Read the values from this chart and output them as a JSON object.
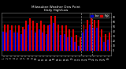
{
  "title": "Milwaukee Weather Dew Point",
  "subtitle": "Daily High/Low",
  "legend_high": "High",
  "legend_low": "Low",
  "color_high": "#dd0000",
  "color_low": "#0000cc",
  "background_color": "#000000",
  "plot_bg_color": "#000000",
  "grid_color": "#444444",
  "ylim": [
    -10,
    80
  ],
  "yticks": [
    0,
    10,
    20,
    30,
    40,
    50,
    60,
    70
  ],
  "ytick_labels": [
    "0",
    "10",
    "20",
    "30",
    "40",
    "50",
    "60",
    "70"
  ],
  "bar_width": 0.42,
  "categories": [
    "1",
    "2",
    "3",
    "4",
    "5",
    "6",
    "7",
    "8",
    "9",
    "10",
    "11",
    "12",
    "13",
    "14",
    "15",
    "16",
    "17",
    "18",
    "19",
    "20",
    "21",
    "22",
    "23",
    "24",
    "25",
    "26",
    "27",
    "28",
    "29",
    "30"
  ],
  "high_values": [
    55,
    55,
    52,
    52,
    52,
    50,
    62,
    68,
    62,
    58,
    62,
    55,
    52,
    72,
    72,
    55,
    52,
    52,
    45,
    45,
    32,
    28,
    55,
    65,
    72,
    65,
    65,
    45,
    35,
    38
  ],
  "low_values": [
    40,
    38,
    42,
    38,
    38,
    35,
    45,
    55,
    42,
    38,
    45,
    38,
    35,
    55,
    58,
    38,
    32,
    35,
    28,
    28,
    18,
    10,
    38,
    45,
    55,
    48,
    48,
    28,
    18,
    22
  ],
  "dashed_lines": [
    21.5,
    24.5
  ],
  "dashed_color": "#888888"
}
